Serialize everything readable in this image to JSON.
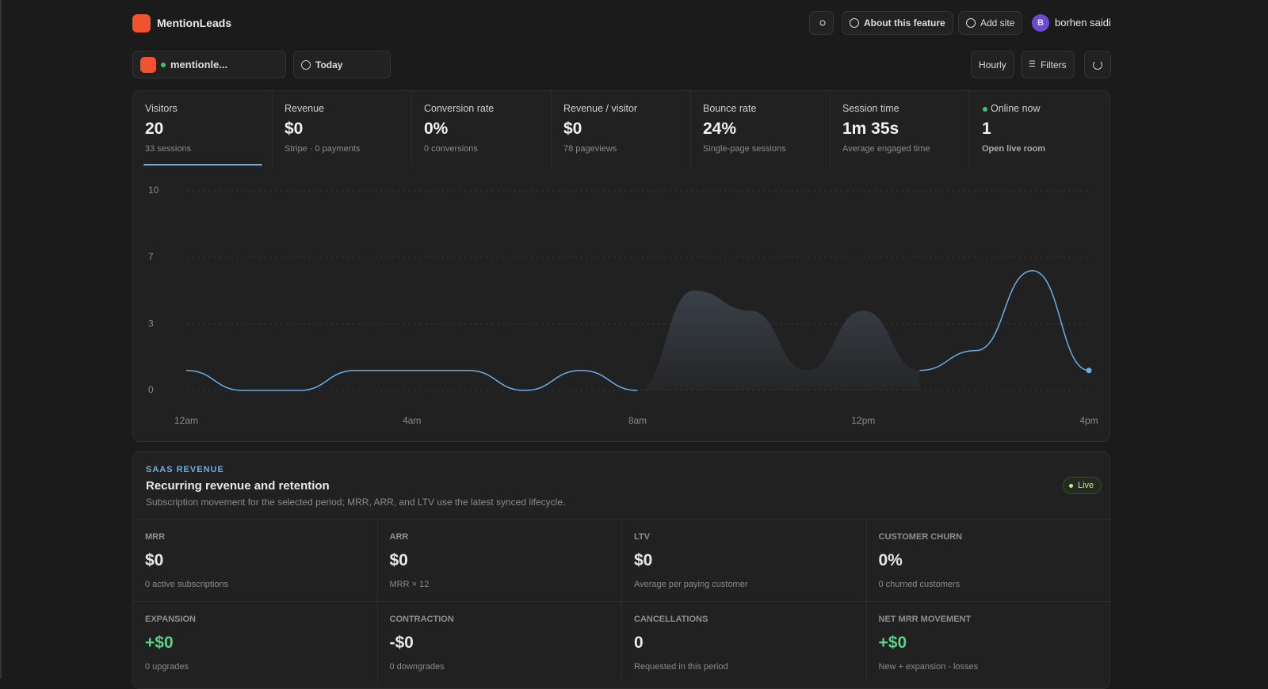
{
  "header": {
    "brand": "MentionLeads",
    "about": "About this feature",
    "add_site": "Add site",
    "user": {
      "initial": "B",
      "name": "borhen saidi"
    }
  },
  "toolbar": {
    "site": "mentionle...",
    "range": "Today",
    "interval": "Hourly",
    "filters": "Filters"
  },
  "stats": [
    {
      "label": "Visitors",
      "value": "20",
      "sub": "33 sessions"
    },
    {
      "label": "Revenue",
      "value": "$0",
      "sub": "Stripe · 0 payments"
    },
    {
      "label": "Conversion rate",
      "value": "0%",
      "sub": "0 conversions"
    },
    {
      "label": "Revenue / visitor",
      "value": "$0",
      "sub": "78 pageviews"
    },
    {
      "label": "Bounce rate",
      "value": "24%",
      "sub": "Single-page sessions"
    },
    {
      "label": "Session time",
      "value": "1m 35s",
      "sub": "Average engaged time"
    }
  ],
  "online": {
    "label": "Online now",
    "value": "1",
    "link": "Open live room"
  },
  "chart_data": {
    "type": "line",
    "categories": [
      "12am",
      null,
      null,
      null,
      "4am",
      null,
      null,
      null,
      "8am",
      null,
      null,
      null,
      "12pm",
      null,
      null,
      null,
      "4pm"
    ],
    "series": [
      {
        "color": "#6aaee8",
        "values": [
          1,
          0,
          0,
          1,
          1,
          1,
          0,
          1,
          0,
          null,
          null,
          null,
          null,
          1,
          2,
          6,
          1
        ]
      },
      {
        "color": "#3a4049",
        "fill": true,
        "values": [
          null,
          null,
          null,
          null,
          null,
          null,
          null,
          null,
          0,
          5,
          4,
          1,
          4,
          1,
          null,
          null,
          null
        ]
      }
    ],
    "ylim": [
      0,
      10
    ],
    "yticks": [
      0,
      {
        "value": 3.33,
        "label": "3"
      },
      {
        "value": 6.67,
        "label": "7"
      },
      10
    ],
    "grid": true
  },
  "saas": {
    "eyebrow": "SAAS REVENUE",
    "title": "Recurring revenue and retention",
    "subtitle": "Subscription movement for the selected period; MRR, ARR, and LTV use the latest synced lifecycle.",
    "badge": "Live",
    "metrics": [
      {
        "label": "MRR",
        "value": "$0",
        "sub": "0 active subscriptions"
      },
      {
        "label": "ARR",
        "value": "$0",
        "sub": "MRR × 12"
      },
      {
        "label": "LTV",
        "value": "$0",
        "sub": "Average per paying customer"
      },
      {
        "label": "CUSTOMER CHURN",
        "value": "0%",
        "sub": "0 churned customers"
      },
      {
        "label": "EXPANSION",
        "value": "+$0",
        "sub": "0 upgrades"
      },
      {
        "label": "CONTRACTION",
        "value": "-$0",
        "sub": "0 downgrades"
      },
      {
        "label": "CANCELLATIONS",
        "value": "0",
        "sub": "Requested in this period"
      },
      {
        "label": "NET MRR MOVEMENT",
        "value": "+$0",
        "sub": "New + expansion - losses"
      }
    ]
  }
}
